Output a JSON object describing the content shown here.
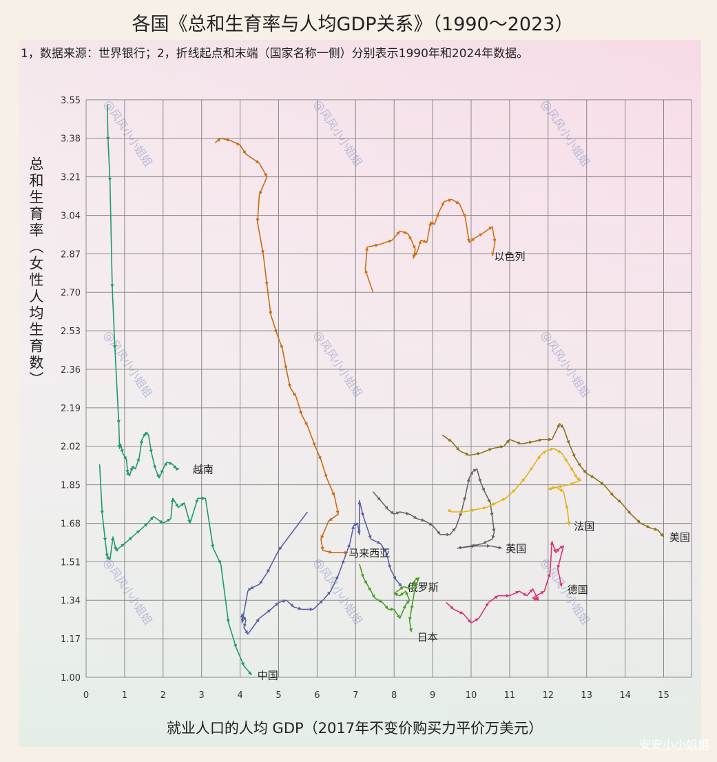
{
  "title": "各国《总和生育率与人均GDP关系》（1990～2023）",
  "note": "1，数据来源：世界银行；2，折线起点和末端（国家名称一侧）分别表示1990年和2024年数据。",
  "corner_watermark": "安安小小姐姐",
  "chart_data": {
    "type": "line",
    "title": "各国《总和生育率与人均GDP关系》（1990～2023）",
    "xlabel": "就业人口的人均 GDP（2017年不变价购买力平价万美元）",
    "ylabel": "总和生育率（女性人均生育数）",
    "xlim": [
      0,
      15.75
    ],
    "ylim": [
      1.0,
      3.55
    ],
    "xticks": [
      "0",
      "1",
      "2",
      "3",
      "4",
      "5",
      "6",
      "7",
      "8",
      "9",
      "10",
      "11",
      "12",
      "13",
      "14",
      "15"
    ],
    "yticks": [
      "1.00",
      "1.17",
      "1.34",
      "1.51",
      "1.68",
      "1.85",
      "2.02",
      "2.19",
      "2.36",
      "2.53",
      "2.70",
      "2.87",
      "3.04",
      "3.21",
      "3.38",
      "3.55"
    ],
    "grid": true,
    "watermarks": [
      "@风风小小姐姐",
      "@风风小小姐姐",
      "@风风小小姐姐",
      "@风风小小姐姐",
      "@风风小小姐姐",
      "@风风小小姐姐",
      "@风风小小姐姐",
      "@风风小小姐姐",
      "@风风小小姐姐"
    ],
    "series": [
      {
        "name": "越南",
        "color": "#1e9a6a",
        "label_offset": [
          0.35,
          0.0
        ],
        "points": [
          [
            0.55,
            3.53
          ],
          [
            0.57,
            3.37
          ],
          [
            0.62,
            3.19
          ],
          [
            0.68,
            2.72
          ],
          [
            0.75,
            2.45
          ],
          [
            0.85,
            2.12
          ],
          [
            0.87,
            2.01
          ],
          [
            0.9,
            2.03
          ],
          [
            0.95,
            1.99
          ],
          [
            1.05,
            1.96
          ],
          [
            1.08,
            1.9
          ],
          [
            1.13,
            1.89
          ],
          [
            1.2,
            1.93
          ],
          [
            1.28,
            1.92
          ],
          [
            1.38,
            1.97
          ],
          [
            1.45,
            2.05
          ],
          [
            1.55,
            2.08
          ],
          [
            1.62,
            2.07
          ],
          [
            1.7,
            1.99
          ],
          [
            1.8,
            1.92
          ],
          [
            1.9,
            1.88
          ],
          [
            2.0,
            1.92
          ],
          [
            2.1,
            1.95
          ],
          [
            2.25,
            1.94
          ],
          [
            2.35,
            1.92
          ],
          [
            2.42,
            1.92
          ]
        ]
      },
      {
        "name": "中国",
        "color": "#1e9a6a",
        "label_offset": [
          0.15,
          0.0
        ],
        "points": [
          [
            0.35,
            1.94
          ],
          [
            0.42,
            1.72
          ],
          [
            0.5,
            1.6
          ],
          [
            0.55,
            1.53
          ],
          [
            0.62,
            1.52
          ],
          [
            0.7,
            1.62
          ],
          [
            0.78,
            1.56
          ],
          [
            0.85,
            1.57
          ],
          [
            1.0,
            1.59
          ],
          [
            1.2,
            1.62
          ],
          [
            1.4,
            1.65
          ],
          [
            1.6,
            1.68
          ],
          [
            1.75,
            1.71
          ],
          [
            2.0,
            1.68
          ],
          [
            2.2,
            1.7
          ],
          [
            2.25,
            1.79
          ],
          [
            2.4,
            1.75
          ],
          [
            2.55,
            1.77
          ],
          [
            2.7,
            1.68
          ],
          [
            2.9,
            1.79
          ],
          [
            3.1,
            1.79
          ],
          [
            3.3,
            1.57
          ],
          [
            3.5,
            1.5
          ],
          [
            3.7,
            1.24
          ],
          [
            3.9,
            1.13
          ],
          [
            4.1,
            1.05
          ],
          [
            4.3,
            1.01
          ]
        ]
      },
      {
        "name": "以色列",
        "color": "#d06e12",
        "label_offset": [
          0.05,
          0.0
        ],
        "points": [
          [
            7.45,
            2.7
          ],
          [
            7.25,
            2.8
          ],
          [
            7.3,
            2.9
          ],
          [
            7.6,
            2.91
          ],
          [
            7.95,
            2.93
          ],
          [
            8.15,
            2.97
          ],
          [
            8.35,
            2.96
          ],
          [
            8.45,
            2.93
          ],
          [
            8.55,
            2.89
          ],
          [
            8.5,
            2.85
          ],
          [
            8.6,
            2.88
          ],
          [
            8.7,
            2.93
          ],
          [
            8.85,
            2.92
          ],
          [
            8.95,
            3.01
          ],
          [
            9.05,
            3.0
          ],
          [
            9.15,
            3.05
          ],
          [
            9.3,
            3.1
          ],
          [
            9.5,
            3.11
          ],
          [
            9.7,
            3.09
          ],
          [
            9.85,
            3.03
          ],
          [
            9.95,
            2.92
          ],
          [
            10.1,
            2.94
          ],
          [
            10.3,
            2.96
          ],
          [
            10.55,
            2.99
          ],
          [
            10.62,
            2.92
          ],
          [
            10.55,
            2.86
          ]
        ]
      },
      {
        "name": "马来西亚",
        "color": "#c86a14",
        "label_offset": [
          0.02,
          0.0
        ],
        "points": [
          [
            3.35,
            3.36
          ],
          [
            3.5,
            3.38
          ],
          [
            3.75,
            3.37
          ],
          [
            4.0,
            3.35
          ],
          [
            4.15,
            3.31
          ],
          [
            4.5,
            3.27
          ],
          [
            4.7,
            3.21
          ],
          [
            4.5,
            3.13
          ],
          [
            4.45,
            3.01
          ],
          [
            4.6,
            2.87
          ],
          [
            4.7,
            2.73
          ],
          [
            4.8,
            2.6
          ],
          [
            4.95,
            2.52
          ],
          [
            5.1,
            2.45
          ],
          [
            5.2,
            2.36
          ],
          [
            5.3,
            2.28
          ],
          [
            5.45,
            2.24
          ],
          [
            5.6,
            2.16
          ],
          [
            5.75,
            2.11
          ],
          [
            5.95,
            2.02
          ],
          [
            6.1,
            1.96
          ],
          [
            6.25,
            1.88
          ],
          [
            6.45,
            1.8
          ],
          [
            6.55,
            1.72
          ],
          [
            6.3,
            1.69
          ],
          [
            6.1,
            1.61
          ],
          [
            6.15,
            1.56
          ],
          [
            6.4,
            1.55
          ],
          [
            6.8,
            1.55
          ]
        ]
      },
      {
        "name": "俄罗斯",
        "color": "#5a60a4",
        "label_offset": [
          0.15,
          0.0
        ],
        "points": [
          [
            5.75,
            1.73
          ],
          [
            5.0,
            1.56
          ],
          [
            4.7,
            1.46
          ],
          [
            4.5,
            1.41
          ],
          [
            4.25,
            1.39
          ],
          [
            4.2,
            1.38
          ],
          [
            4.05,
            1.24
          ],
          [
            4.05,
            1.28
          ],
          [
            4.15,
            1.25
          ],
          [
            4.1,
            1.22
          ],
          [
            4.2,
            1.19
          ],
          [
            4.5,
            1.26
          ],
          [
            4.8,
            1.3
          ],
          [
            5.0,
            1.33
          ],
          [
            5.2,
            1.34
          ],
          [
            5.4,
            1.31
          ],
          [
            5.6,
            1.3
          ],
          [
            5.9,
            1.3
          ],
          [
            6.15,
            1.34
          ],
          [
            6.35,
            1.38
          ],
          [
            6.55,
            1.45
          ],
          [
            6.7,
            1.52
          ],
          [
            6.85,
            1.59
          ],
          [
            6.95,
            1.67
          ],
          [
            7.05,
            1.68
          ],
          [
            7.1,
            1.63
          ],
          [
            7.1,
            1.78
          ],
          [
            7.2,
            1.71
          ],
          [
            7.4,
            1.61
          ],
          [
            7.65,
            1.59
          ],
          [
            7.8,
            1.55
          ],
          [
            7.9,
            1.48
          ],
          [
            8.05,
            1.43
          ],
          [
            8.2,
            1.4
          ]
        ]
      },
      {
        "name": "日本",
        "color": "#4a9e28",
        "label_offset": [
          0.15,
          -0.02
        ],
        "points": [
          [
            7.1,
            1.5
          ],
          [
            7.2,
            1.44
          ],
          [
            7.3,
            1.41
          ],
          [
            7.4,
            1.38
          ],
          [
            7.5,
            1.35
          ],
          [
            7.7,
            1.33
          ],
          [
            7.85,
            1.3
          ],
          [
            8.0,
            1.3
          ],
          [
            8.15,
            1.26
          ],
          [
            8.3,
            1.32
          ],
          [
            8.4,
            1.34
          ],
          [
            8.3,
            1.38
          ],
          [
            8.15,
            1.36
          ],
          [
            8.0,
            1.37
          ],
          [
            8.25,
            1.4
          ],
          [
            8.45,
            1.39
          ],
          [
            8.55,
            1.43
          ],
          [
            8.65,
            1.44
          ],
          [
            8.55,
            1.4
          ],
          [
            8.45,
            1.3
          ],
          [
            8.4,
            1.25
          ],
          [
            8.45,
            1.2
          ]
        ]
      },
      {
        "name": "英国",
        "color": "#666666",
        "label_offset": [
          0.1,
          0.0
        ],
        "points": [
          [
            7.45,
            1.82
          ],
          [
            7.65,
            1.78
          ],
          [
            7.85,
            1.74
          ],
          [
            8.0,
            1.72
          ],
          [
            8.15,
            1.73
          ],
          [
            8.4,
            1.72
          ],
          [
            8.6,
            1.7
          ],
          [
            8.8,
            1.69
          ],
          [
            9.0,
            1.67
          ],
          [
            9.2,
            1.63
          ],
          [
            9.45,
            1.63
          ],
          [
            9.6,
            1.66
          ],
          [
            9.75,
            1.73
          ],
          [
            9.85,
            1.8
          ],
          [
            9.95,
            1.88
          ],
          [
            10.05,
            1.91
          ],
          [
            10.15,
            1.92
          ],
          [
            10.25,
            1.86
          ],
          [
            10.35,
            1.82
          ],
          [
            10.5,
            1.77
          ],
          [
            10.55,
            1.71
          ],
          [
            10.6,
            1.64
          ],
          [
            10.55,
            1.61
          ],
          [
            10.3,
            1.59
          ],
          [
            10.0,
            1.58
          ],
          [
            9.65,
            1.57
          ],
          [
            10.1,
            1.58
          ],
          [
            10.5,
            1.58
          ],
          [
            10.8,
            1.57
          ]
        ]
      },
      {
        "name": "法国",
        "color": "#e0b218",
        "label_offset": [
          0.12,
          0.0
        ],
        "points": [
          [
            9.4,
            1.74
          ],
          [
            9.5,
            1.73
          ],
          [
            9.8,
            1.73
          ],
          [
            10.1,
            1.74
          ],
          [
            10.4,
            1.75
          ],
          [
            10.65,
            1.77
          ],
          [
            10.9,
            1.79
          ],
          [
            11.15,
            1.83
          ],
          [
            11.4,
            1.88
          ],
          [
            11.6,
            1.93
          ],
          [
            11.8,
            1.98
          ],
          [
            11.95,
            2.0
          ],
          [
            12.15,
            2.01
          ],
          [
            12.35,
            1.99
          ],
          [
            12.5,
            1.95
          ],
          [
            12.65,
            1.91
          ],
          [
            12.75,
            1.88
          ],
          [
            12.85,
            1.87
          ],
          [
            12.55,
            1.85
          ],
          [
            12.25,
            1.84
          ],
          [
            12.0,
            1.83
          ],
          [
            12.2,
            1.84
          ],
          [
            12.4,
            1.82
          ],
          [
            12.5,
            1.74
          ],
          [
            12.55,
            1.67
          ]
        ]
      },
      {
        "name": "美国",
        "color": "#8c7218",
        "label_offset": [
          0.15,
          0.0
        ],
        "points": [
          [
            9.25,
            2.07
          ],
          [
            9.5,
            2.04
          ],
          [
            9.7,
            2.0
          ],
          [
            9.95,
            1.98
          ],
          [
            10.25,
            1.99
          ],
          [
            10.55,
            2.01
          ],
          [
            10.85,
            2.02
          ],
          [
            11.0,
            2.05
          ],
          [
            11.3,
            2.03
          ],
          [
            11.6,
            2.04
          ],
          [
            11.85,
            2.05
          ],
          [
            12.1,
            2.05
          ],
          [
            12.3,
            2.12
          ],
          [
            12.4,
            2.1
          ],
          [
            12.55,
            2.03
          ],
          [
            12.7,
            1.97
          ],
          [
            12.85,
            1.93
          ],
          [
            13.0,
            1.9
          ],
          [
            13.2,
            1.88
          ],
          [
            13.45,
            1.85
          ],
          [
            13.7,
            1.8
          ],
          [
            13.9,
            1.77
          ],
          [
            14.15,
            1.72
          ],
          [
            14.4,
            1.68
          ],
          [
            14.65,
            1.66
          ],
          [
            14.85,
            1.65
          ],
          [
            15.0,
            1.62
          ]
        ]
      },
      {
        "name": "德国",
        "color": "#d8337a",
        "label_offset": [
          0.15,
          -0.01
        ],
        "points": [
          [
            9.35,
            1.33
          ],
          [
            9.55,
            1.3
          ],
          [
            9.8,
            1.28
          ],
          [
            10.0,
            1.24
          ],
          [
            10.2,
            1.26
          ],
          [
            10.45,
            1.33
          ],
          [
            10.7,
            1.36
          ],
          [
            11.0,
            1.36
          ],
          [
            11.25,
            1.38
          ],
          [
            11.45,
            1.36
          ],
          [
            11.6,
            1.39
          ],
          [
            11.75,
            1.34
          ],
          [
            11.6,
            1.35
          ],
          [
            11.9,
            1.38
          ],
          [
            12.05,
            1.46
          ],
          [
            12.1,
            1.6
          ],
          [
            12.2,
            1.55
          ],
          [
            12.3,
            1.57
          ],
          [
            12.4,
            1.58
          ],
          [
            12.25,
            1.48
          ],
          [
            12.35,
            1.4
          ]
        ]
      }
    ]
  }
}
